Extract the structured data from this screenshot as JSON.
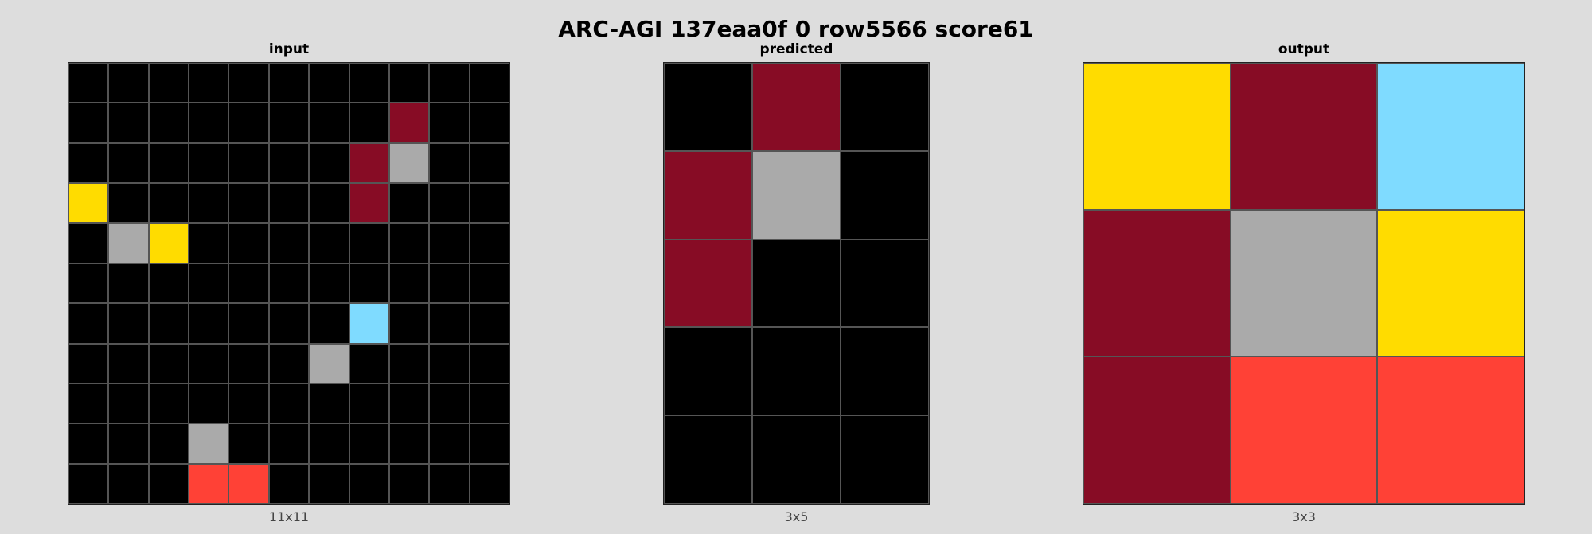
{
  "title": "ARC-AGI 137eaa0f 0 row5566 score61",
  "palette": {
    "0": "#000000",
    "1": "#0074D9",
    "2": "#FF4136",
    "3": "#2ECC40",
    "4": "#FFDC00",
    "5": "#AAAAAA",
    "6": "#F012BE",
    "7": "#FF851B",
    "8": "#7FDBFF",
    "9": "#870C25"
  },
  "panels": [
    {
      "title": "input",
      "caption": "11x11",
      "grid": [
        [
          0,
          0,
          0,
          0,
          0,
          0,
          0,
          0,
          0,
          0,
          0
        ],
        [
          0,
          0,
          0,
          0,
          0,
          0,
          0,
          0,
          9,
          0,
          0
        ],
        [
          0,
          0,
          0,
          0,
          0,
          0,
          0,
          9,
          5,
          0,
          0
        ],
        [
          4,
          0,
          0,
          0,
          0,
          0,
          0,
          9,
          0,
          0,
          0
        ],
        [
          0,
          5,
          4,
          0,
          0,
          0,
          0,
          0,
          0,
          0,
          0
        ],
        [
          0,
          0,
          0,
          0,
          0,
          0,
          0,
          0,
          0,
          0,
          0
        ],
        [
          0,
          0,
          0,
          0,
          0,
          0,
          0,
          8,
          0,
          0,
          0
        ],
        [
          0,
          0,
          0,
          0,
          0,
          0,
          5,
          0,
          0,
          0,
          0
        ],
        [
          0,
          0,
          0,
          0,
          0,
          0,
          0,
          0,
          0,
          0,
          0
        ],
        [
          0,
          0,
          0,
          5,
          0,
          0,
          0,
          0,
          0,
          0,
          0
        ],
        [
          0,
          0,
          0,
          2,
          2,
          0,
          0,
          0,
          0,
          0,
          0
        ]
      ]
    },
    {
      "title": "predicted",
      "caption": "3x5",
      "grid": [
        [
          0,
          9,
          0
        ],
        [
          9,
          5,
          0
        ],
        [
          9,
          0,
          0
        ],
        [
          0,
          0,
          0
        ],
        [
          0,
          0,
          0
        ]
      ]
    },
    {
      "title": "output",
      "caption": "3x3",
      "grid": [
        [
          4,
          9,
          8
        ],
        [
          9,
          5,
          4
        ],
        [
          9,
          2,
          2
        ]
      ]
    }
  ]
}
